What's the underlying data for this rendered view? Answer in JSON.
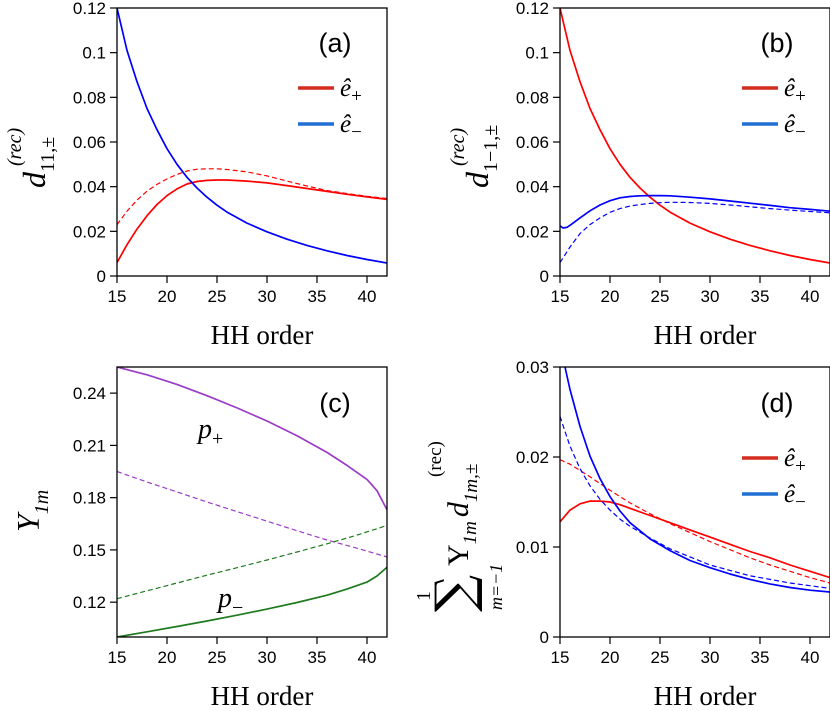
{
  "chart_data": [
    {
      "id": "a",
      "type": "line",
      "panel_label": "(a)",
      "xlabel": "HH order",
      "ylabel": {
        "base": "d",
        "sup": "(rec)",
        "sub": "11,±"
      },
      "xlim": [
        15,
        42
      ],
      "ylim": [
        0,
        0.12
      ],
      "xticks": [
        15,
        20,
        25,
        30,
        35,
        40
      ],
      "yticks": [
        0,
        0.02,
        0.04,
        0.06,
        0.08,
        0.1,
        0.12
      ],
      "ytick_labels": [
        "0",
        "0.02",
        "0.04",
        "0.06",
        "0.08",
        "0.1",
        "0.12"
      ],
      "legend": [
        {
          "label": "ê+",
          "base": "ê",
          "sub": "+",
          "color": "#d42d1f"
        },
        {
          "label": "ê−",
          "base": "ê",
          "sub": "−",
          "color": "#1f6fd4"
        }
      ],
      "series": [
        {
          "name": "ê+ solid",
          "color": "#ff0000",
          "dashed": false,
          "x": [
            15,
            16,
            17,
            18,
            19,
            20,
            21,
            22,
            23,
            24,
            25,
            26,
            28,
            30,
            32,
            34,
            36,
            38,
            40,
            42
          ],
          "y": [
            0.006,
            0.014,
            0.021,
            0.027,
            0.032,
            0.036,
            0.039,
            0.0412,
            0.0423,
            0.0428,
            0.043,
            0.043,
            0.0425,
            0.0417,
            0.0405,
            0.0392,
            0.0379,
            0.0366,
            0.0354,
            0.0343
          ]
        },
        {
          "name": "ê+ dashed",
          "color": "#ff0000",
          "dashed": true,
          "x": [
            15,
            16,
            17,
            18,
            19,
            20,
            21,
            22,
            23,
            24,
            25,
            26,
            28,
            30,
            32,
            34,
            36,
            38,
            40,
            42
          ],
          "y": [
            0.023,
            0.029,
            0.034,
            0.038,
            0.041,
            0.0435,
            0.0455,
            0.047,
            0.0478,
            0.048,
            0.048,
            0.0477,
            0.0466,
            0.0448,
            0.0425,
            0.0403,
            0.0383,
            0.0369,
            0.0357,
            0.0347
          ]
        },
        {
          "name": "ê− solid",
          "color": "#0000ff",
          "dashed": false,
          "x": [
            15,
            16,
            17,
            18,
            19,
            20,
            21,
            22,
            23,
            24,
            25,
            26,
            28,
            30,
            32,
            34,
            36,
            38,
            40,
            42
          ],
          "y": [
            0.12,
            0.101,
            0.087,
            0.075,
            0.0655,
            0.057,
            0.05,
            0.0442,
            0.0394,
            0.0353,
            0.0317,
            0.0286,
            0.0237,
            0.0198,
            0.0165,
            0.0137,
            0.0113,
            0.0092,
            0.0074,
            0.0058
          ]
        }
      ]
    },
    {
      "id": "b",
      "type": "line",
      "panel_label": "(b)",
      "xlabel": "HH order",
      "ylabel": {
        "base": "d",
        "sup": "(rec)",
        "sub": "1−1,±"
      },
      "xlim": [
        15,
        42
      ],
      "ylim": [
        0,
        0.12
      ],
      "xticks": [
        15,
        20,
        25,
        30,
        35,
        40
      ],
      "yticks": [
        0,
        0.02,
        0.04,
        0.06,
        0.08,
        0.1,
        0.12
      ],
      "ytick_labels": [
        "0",
        "0.02",
        "0.04",
        "0.06",
        "0.08",
        "0.1",
        "0.12"
      ],
      "legend": [
        {
          "label": "ê+",
          "base": "ê",
          "sub": "+",
          "color": "#d42d1f"
        },
        {
          "label": "ê−",
          "base": "ê",
          "sub": "−",
          "color": "#1f6fd4"
        }
      ],
      "series": [
        {
          "name": "ê+ solid",
          "color": "#ff0000",
          "dashed": false,
          "x": [
            15,
            16,
            17,
            18,
            19,
            20,
            21,
            22,
            23,
            24,
            25,
            26,
            28,
            30,
            32,
            34,
            36,
            38,
            40,
            42
          ],
          "y": [
            0.12,
            0.101,
            0.087,
            0.075,
            0.0655,
            0.057,
            0.05,
            0.0442,
            0.0394,
            0.0353,
            0.0317,
            0.0286,
            0.0237,
            0.0198,
            0.0165,
            0.0137,
            0.0113,
            0.0092,
            0.0074,
            0.0058
          ]
        },
        {
          "name": "ê− solid",
          "color": "#0000ff",
          "dashed": false,
          "x": [
            15,
            15.3,
            15.7,
            16,
            17,
            18,
            19,
            20,
            21,
            22,
            23,
            24,
            25,
            26,
            28,
            30,
            32,
            34,
            36,
            38,
            40,
            42
          ],
          "y": [
            0.0225,
            0.0215,
            0.0218,
            0.0227,
            0.026,
            0.0292,
            0.0318,
            0.0337,
            0.035,
            0.0356,
            0.0359,
            0.036,
            0.036,
            0.0359,
            0.0353,
            0.0345,
            0.0336,
            0.0326,
            0.0316,
            0.0306,
            0.0298,
            0.029
          ]
        },
        {
          "name": "ê− dashed",
          "color": "#0000ff",
          "dashed": true,
          "x": [
            15,
            16,
            17,
            18,
            19,
            20,
            21,
            22,
            23,
            24,
            25,
            26,
            28,
            30,
            32,
            34,
            36,
            38,
            40,
            42
          ],
          "y": [
            0.006,
            0.013,
            0.019,
            0.023,
            0.026,
            0.0285,
            0.0302,
            0.0313,
            0.032,
            0.0325,
            0.0328,
            0.033,
            0.0329,
            0.0325,
            0.0318,
            0.031,
            0.0302,
            0.0295,
            0.0289,
            0.0283
          ]
        }
      ]
    },
    {
      "id": "c",
      "type": "line",
      "panel_label": "(c)",
      "xlabel": "HH order",
      "ylabel": {
        "base": "Υ",
        "sup": "",
        "sub": "1m"
      },
      "xlim": [
        15,
        42
      ],
      "ylim": [
        0.1,
        0.255
      ],
      "xticks": [
        15,
        20,
        25,
        30,
        35,
        40
      ],
      "yticks": [
        0.12,
        0.15,
        0.18,
        0.21,
        0.24
      ],
      "ytick_labels": [
        "0.12",
        "0.15",
        "0.18",
        "0.21",
        "0.24"
      ],
      "annotations": [
        {
          "base": "p",
          "sub": "+",
          "color": "#9a3cc8"
        },
        {
          "base": "p",
          "sub": "−",
          "color": "#1f7a1f"
        }
      ],
      "series": [
        {
          "name": "p+ solid",
          "color": "#9a3cc8",
          "dashed": false,
          "x": [
            15,
            18,
            21,
            24,
            27,
            30,
            33,
            36,
            38,
            40,
            41,
            42
          ],
          "y": [
            0.255,
            0.2505,
            0.245,
            0.2385,
            0.2315,
            0.224,
            0.2155,
            0.206,
            0.1985,
            0.1905,
            0.184,
            0.173
          ]
        },
        {
          "name": "p+ dashed",
          "color": "#9a3cc8",
          "dashed": true,
          "x": [
            15,
            18,
            21,
            24,
            27,
            30,
            33,
            36,
            39,
            42
          ],
          "y": [
            0.195,
            0.189,
            0.1833,
            0.1775,
            0.172,
            0.1665,
            0.161,
            0.1557,
            0.151,
            0.146
          ]
        },
        {
          "name": "p− dashed",
          "color": "#1f7a1f",
          "dashed": true,
          "x": [
            15,
            18,
            21,
            24,
            27,
            30,
            33,
            36,
            39,
            42
          ],
          "y": [
            0.122,
            0.1265,
            0.131,
            0.1355,
            0.1398,
            0.1442,
            0.1488,
            0.1535,
            0.1585,
            0.164
          ]
        },
        {
          "name": "p− solid",
          "color": "#1f7a1f",
          "dashed": false,
          "x": [
            15,
            18,
            21,
            24,
            27,
            30,
            33,
            36,
            38,
            40,
            41,
            42
          ],
          "y": [
            0.1,
            0.103,
            0.106,
            0.1092,
            0.1125,
            0.116,
            0.1198,
            0.124,
            0.1275,
            0.1315,
            0.135,
            0.14
          ]
        }
      ]
    },
    {
      "id": "d",
      "type": "line",
      "panel_label": "(d)",
      "xlabel": "HH order",
      "ylabel": {
        "sum_top": "1",
        "sum_sym": "∑",
        "sum_bottom": "m=−1",
        "base": "Υ",
        "sub1": "1m",
        "base2": "d",
        "sup": "(rec)",
        "sub": "1m,±"
      },
      "xlim": [
        15,
        42
      ],
      "ylim": [
        0,
        0.03
      ],
      "xticks": [
        15,
        20,
        25,
        30,
        35,
        40
      ],
      "yticks": [
        0,
        0.01,
        0.02,
        0.03
      ],
      "ytick_labels": [
        "0",
        "0.01",
        "0.02",
        "0.03"
      ],
      "legend": [
        {
          "label": "ê+",
          "base": "ê",
          "sub": "+",
          "color": "#d42d1f"
        },
        {
          "label": "ê−",
          "base": "ê",
          "sub": "−",
          "color": "#1f6fd4"
        }
      ],
      "series": [
        {
          "name": "ê+ solid",
          "color": "#ff0000",
          "dashed": false,
          "x": [
            15,
            16,
            17,
            18,
            19,
            20,
            21,
            22,
            24,
            26,
            28,
            30,
            32,
            34,
            36,
            38,
            40,
            42
          ],
          "y": [
            0.0128,
            0.0141,
            0.0148,
            0.0151,
            0.0151,
            0.015,
            0.0147,
            0.0143,
            0.0135,
            0.0127,
            0.0119,
            0.0111,
            0.0103,
            0.0095,
            0.0088,
            0.008,
            0.0073,
            0.0066
          ]
        },
        {
          "name": "ê+ dashed",
          "color": "#ff0000",
          "dashed": true,
          "x": [
            15,
            16,
            18,
            20,
            22,
            24,
            26,
            28,
            30,
            32,
            34,
            36,
            38,
            40,
            42
          ],
          "y": [
            0.0197,
            0.0192,
            0.0178,
            0.0163,
            0.0149,
            0.0137,
            0.0126,
            0.0116,
            0.0106,
            0.0097,
            0.0088,
            0.008,
            0.0073,
            0.0066,
            0.006
          ]
        },
        {
          "name": "ê− solid",
          "color": "#0000ff",
          "dashed": false,
          "x": [
            15.5,
            16,
            17,
            18,
            19,
            20,
            21,
            22,
            24,
            26,
            28,
            30,
            32,
            34,
            36,
            38,
            40,
            42
          ],
          "y": [
            0.03,
            0.0275,
            0.0234,
            0.0201,
            0.0176,
            0.0156,
            0.014,
            0.0127,
            0.0109,
            0.0096,
            0.0085,
            0.0077,
            0.007,
            0.0064,
            0.0059,
            0.0055,
            0.0052,
            0.005
          ]
        },
        {
          "name": "ê− dashed",
          "color": "#0000ff",
          "dashed": true,
          "x": [
            15,
            16,
            17,
            18,
            19,
            20,
            21,
            22,
            24,
            26,
            28,
            30,
            32,
            34,
            36,
            38,
            40,
            42
          ],
          "y": [
            0.0245,
            0.0212,
            0.0187,
            0.0168,
            0.0153,
            0.0141,
            0.0131,
            0.0123,
            0.011,
            0.0098,
            0.0089,
            0.008,
            0.0074,
            0.0068,
            0.0064,
            0.006,
            0.0057,
            0.0054
          ]
        }
      ]
    }
  ]
}
